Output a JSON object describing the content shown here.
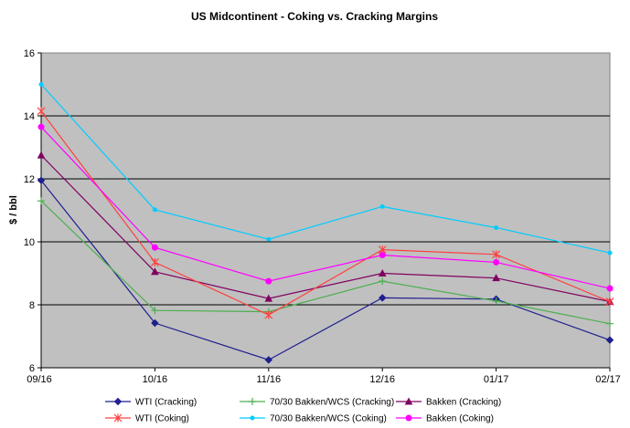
{
  "chart_data": {
    "type": "line",
    "title": "US Midcontinent - Coking vs. Cracking Margins",
    "xlabel": "",
    "ylabel": "$ / bbl",
    "ylim": [
      6,
      16
    ],
    "yticks": [
      "6",
      "8",
      "10",
      "12",
      "14",
      "16"
    ],
    "x": [
      "09/16",
      "10/16",
      "11/16",
      "12/16",
      "01/17",
      "02/17"
    ],
    "grid": "horizontal major gridlines",
    "plot_background": "#c0c0c0",
    "legend_position": "bottom",
    "series": [
      {
        "name": "WTI (Cracking)",
        "color": "#1f1f8f",
        "marker": "diamond",
        "values": [
          11.95,
          7.42,
          6.25,
          8.22,
          8.18,
          6.88
        ]
      },
      {
        "name": "70/30 Bakken/WCS (Cracking)",
        "color": "#4caf50",
        "marker": "plus",
        "values": [
          11.3,
          7.82,
          7.78,
          8.75,
          8.12,
          7.4
        ]
      },
      {
        "name": "Bakken (Cracking)",
        "color": "#800060",
        "marker": "triangle",
        "values": [
          12.75,
          9.05,
          8.2,
          9.0,
          8.85,
          8.1
        ]
      },
      {
        "name": "WTI (Coking)",
        "color": "#ff4040",
        "marker": "star",
        "values": [
          14.15,
          9.35,
          7.68,
          9.75,
          9.6,
          8.1
        ]
      },
      {
        "name": "70/30 Bakken/WCS (Coking)",
        "color": "#00ccff",
        "marker": "circle-small",
        "values": [
          15.0,
          11.02,
          10.08,
          11.12,
          10.45,
          9.65
        ]
      },
      {
        "name": "Bakken (Coking)",
        "color": "#ff00ff",
        "marker": "circle",
        "values": [
          13.65,
          9.82,
          8.75,
          9.58,
          9.35,
          8.52
        ]
      }
    ]
  }
}
